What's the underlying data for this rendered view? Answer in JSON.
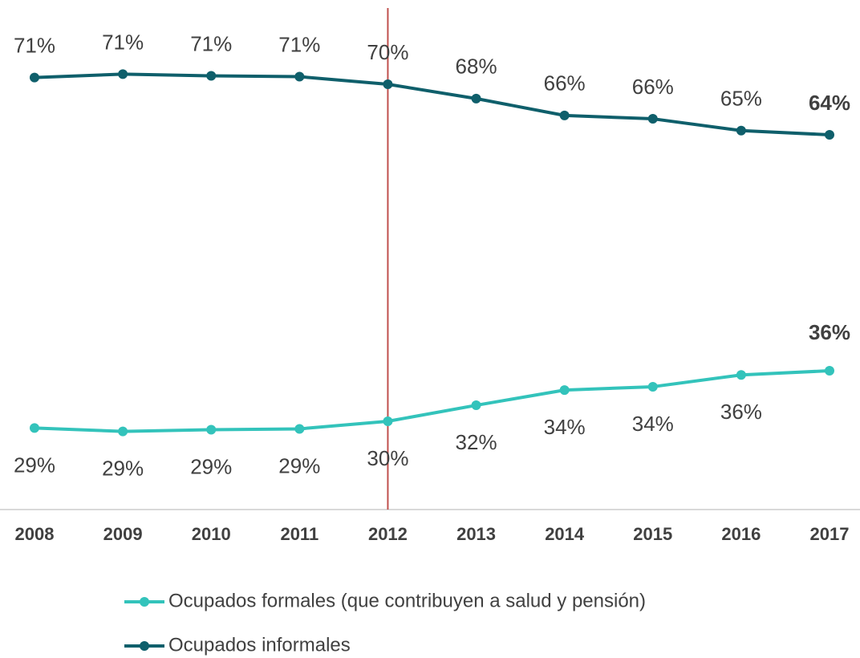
{
  "chart_data": {
    "type": "line",
    "categories": [
      "2008",
      "2009",
      "2010",
      "2011",
      "2012",
      "2013",
      "2014",
      "2015",
      "2016",
      "2017"
    ],
    "series": [
      {
        "name": "Ocupados formales (que contribuyen a salud y pensión)",
        "color": "#33c3bb",
        "values": [
          29.2,
          28.8,
          29.0,
          29.1,
          30.0,
          31.9,
          33.7,
          34.1,
          35.5,
          36.0
        ],
        "value_labels": [
          "29%",
          "29%",
          "29%",
          "29%",
          "30%",
          "32%",
          "34%",
          "34%",
          "36%",
          "36%"
        ]
      },
      {
        "name": "Ocupados informales",
        "color": "#0f5f6b",
        "values": [
          70.8,
          71.2,
          71.0,
          70.9,
          70.0,
          68.3,
          66.3,
          65.9,
          64.5,
          64.0
        ],
        "value_labels": [
          "71%",
          "71%",
          "71%",
          "71%",
          "70%",
          "68%",
          "66%",
          "66%",
          "65%",
          "64%"
        ]
      }
    ],
    "ylim": [
      20,
      80
    ],
    "vline_category": "2012"
  }
}
